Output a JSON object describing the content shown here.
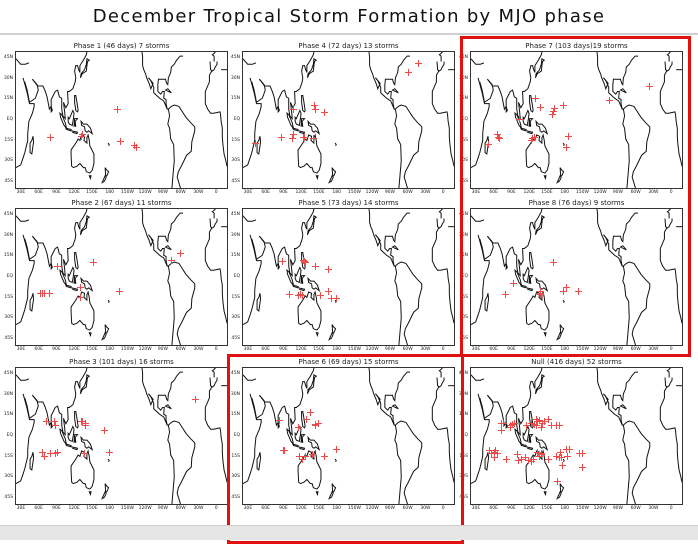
{
  "title": "December Tropical Storm Formation by MJO phase",
  "colors": {
    "storm_marker": "#ee4a4a",
    "highlight_box": "#e31010",
    "coastline": "#111111"
  },
  "axes": {
    "lat_ticks": [
      "45N",
      "30N",
      "15N",
      "EQ",
      "15S",
      "30S",
      "45S"
    ],
    "lon_ticks": [
      "30E",
      "60E",
      "90E",
      "120E",
      "150E",
      "180",
      "150W",
      "120W",
      "90W",
      "60W",
      "30W",
      "0"
    ],
    "lon_range": [
      20,
      380
    ],
    "lat_range": [
      -50,
      50
    ]
  },
  "marker": "red-plus",
  "panels": [
    {
      "title": "Phase 1 (46 days)  7 storms",
      "highlighted": false,
      "storms": [
        [
          78,
          -12
        ],
        [
          130,
          -11
        ],
        [
          132,
          -10
        ],
        [
          192,
          8.5
        ],
        [
          196,
          -15
        ],
        [
          223,
          -19
        ],
        [
          221,
          -18
        ]
      ]
    },
    {
      "title": "Phase 4 (72 days) 13 storms",
      "highlighted": false,
      "storms": [
        [
          41,
          -16
        ],
        [
          85,
          -12
        ],
        [
          104,
          -13
        ],
        [
          106,
          -10
        ],
        [
          105,
          8
        ],
        [
          123,
          -12
        ],
        [
          124,
          -12
        ],
        [
          139,
          -13
        ],
        [
          141,
          11
        ],
        [
          142,
          8
        ],
        [
          158,
          6
        ],
        [
          299,
          35
        ],
        [
          316,
          42
        ]
      ]
    },
    {
      "title": "Phase 7 (103 days)19  storms",
      "highlighted": true,
      "storms": [
        [
          50,
          -17
        ],
        [
          64,
          -10
        ],
        [
          68,
          -13
        ],
        [
          66,
          -12
        ],
        [
          102,
          1
        ],
        [
          129,
          16
        ],
        [
          138,
          10
        ],
        [
          137,
          10
        ],
        [
          157,
          5
        ],
        [
          161,
          9
        ],
        [
          159,
          7
        ],
        [
          177,
          11
        ],
        [
          184,
          -11
        ],
        [
          182,
          -19
        ],
        [
          122,
          -14
        ],
        [
          127,
          -12
        ],
        [
          124,
          -13
        ],
        [
          254,
          15
        ],
        [
          322,
          25
        ]
      ]
    },
    {
      "title": "Phase 2 (67 days)  11  storms",
      "highlighted": false,
      "storms": [
        [
          62,
          -11
        ],
        [
          65,
          -11
        ],
        [
          69,
          -11
        ],
        [
          76,
          -11
        ],
        [
          90,
          8.5
        ],
        [
          129,
          -7
        ],
        [
          129,
          -14
        ],
        [
          151,
          11
        ],
        [
          195,
          -10
        ],
        [
          283,
          13
        ],
        [
          298,
          18
        ]
      ]
    },
    {
      "title": "Phase 5 (73 days)  14  storms",
      "highlighted": false,
      "storms": [
        [
          86,
          12
        ],
        [
          99,
          -12
        ],
        [
          114,
          -13
        ],
        [
          121,
          -13
        ],
        [
          118,
          -12
        ],
        [
          124,
          12
        ],
        [
          125,
          11
        ],
        [
          143,
          8
        ],
        [
          151,
          -13
        ],
        [
          165,
          6
        ],
        [
          164,
          -10
        ],
        [
          169,
          -15
        ],
        [
          178,
          -15
        ],
        [
          123,
          13
        ]
      ]
    },
    {
      "title": "Phase 8 (76 days)  9  storms",
      "highlighted": true,
      "storms": [
        [
          78,
          -12
        ],
        [
          92,
          -4
        ],
        [
          138,
          -12
        ],
        [
          138,
          -10
        ],
        [
          137,
          -11
        ],
        [
          159,
          11
        ],
        [
          176,
          -10
        ],
        [
          181,
          -7
        ],
        [
          202,
          -10
        ]
      ]
    },
    {
      "title": "Phase 3 (101 days) 16  storms",
      "highlighted": false,
      "storms": [
        [
          71,
          11
        ],
        [
          85,
          11
        ],
        [
          86,
          8.5
        ],
        [
          130,
          11
        ],
        [
          133,
          11
        ],
        [
          138,
          10
        ],
        [
          138,
          8
        ],
        [
          169,
          5
        ],
        [
          65,
          -11
        ],
        [
          68,
          -14
        ],
        [
          79,
          -12
        ],
        [
          86,
          -12
        ],
        [
          90,
          -11
        ],
        [
          135,
          -12
        ],
        [
          178,
          -11
        ],
        [
          324,
          27
        ]
      ]
    },
    {
      "title": "Phase 6 (69 days)  15  storms",
      "highlighted": true,
      "storms": [
        [
          82,
          12
        ],
        [
          88,
          -10
        ],
        [
          90,
          -10
        ],
        [
          113,
          7
        ],
        [
          128,
          13
        ],
        [
          134,
          18
        ],
        [
          142,
          9
        ],
        [
          147,
          10
        ],
        [
          143,
          8
        ],
        [
          116,
          -14
        ],
        [
          120,
          -16
        ],
        [
          125,
          -14
        ],
        [
          138,
          -13
        ],
        [
          158,
          -14
        ],
        [
          178,
          -9
        ]
      ]
    },
    {
      "title": "Null (416 days)   52  storms",
      "highlighted": true,
      "storms": [
        [
          71,
          10
        ],
        [
          71,
          5
        ],
        [
          75,
          10
        ],
        [
          86,
          8.5
        ],
        [
          86,
          7
        ],
        [
          90,
          9
        ],
        [
          93,
          10
        ],
        [
          114,
          8.5
        ],
        [
          123,
          10
        ],
        [
          128,
          9
        ],
        [
          131,
          13
        ],
        [
          131,
          8.5
        ],
        [
          133,
          11
        ],
        [
          136,
          12
        ],
        [
          140,
          10
        ],
        [
          139,
          7
        ],
        [
          144,
          11
        ],
        [
          151,
          13
        ],
        [
          156,
          8.5
        ],
        [
          164,
          8.5
        ],
        [
          170,
          8
        ],
        [
          52,
          -10
        ],
        [
          55,
          -12
        ],
        [
          59,
          -11
        ],
        [
          61,
          -10
        ],
        [
          64,
          -12
        ],
        [
          60,
          -15
        ],
        [
          80,
          -16
        ],
        [
          99,
          -13
        ],
        [
          100,
          -17
        ],
        [
          106,
          -16
        ],
        [
          112,
          -15
        ],
        [
          118,
          -17
        ],
        [
          122,
          -18
        ],
        [
          125,
          -16
        ],
        [
          133,
          -11
        ],
        [
          139,
          -12
        ],
        [
          139,
          -13
        ],
        [
          136,
          -14
        ],
        [
          151,
          -16
        ],
        [
          164,
          -14
        ],
        [
          170,
          -15
        ],
        [
          171,
          -11
        ],
        [
          173,
          -15
        ],
        [
          181,
          -9
        ],
        [
          187,
          -9
        ],
        [
          183,
          -14
        ],
        [
          174,
          -21
        ],
        [
          203,
          -12
        ],
        [
          209,
          -12
        ],
        [
          209,
          -22
        ],
        [
          166,
          -32
        ]
      ]
    }
  ]
}
